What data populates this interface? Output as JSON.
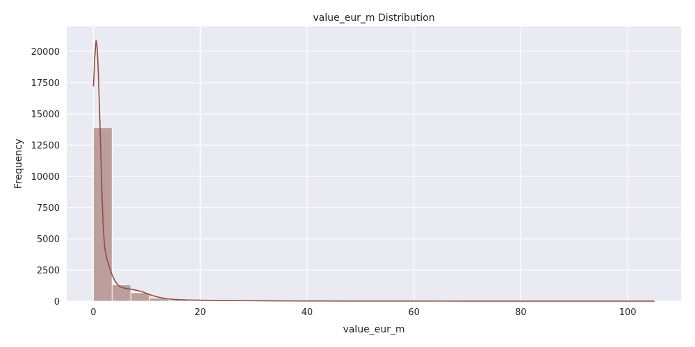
{
  "chart_data": {
    "type": "bar",
    "title": "value_eur_m Distribution",
    "xlabel": "value_eur_m",
    "ylabel": "Frequency",
    "xlim": [
      -5,
      110
    ],
    "ylim": [
      0,
      22000
    ],
    "xticks": [
      0,
      20,
      40,
      60,
      80,
      100
    ],
    "yticks": [
      0,
      2500,
      5000,
      7500,
      10000,
      12500,
      15000,
      17500,
      20000
    ],
    "grid": true,
    "bin_width": 3.5,
    "bins": [
      {
        "x0": 0,
        "x1": 3.5,
        "count": 13900
      },
      {
        "x0": 3.5,
        "x1": 7,
        "count": 1320
      },
      {
        "x0": 7,
        "x1": 10.5,
        "count": 680
      },
      {
        "x0": 10.5,
        "x1": 14,
        "count": 250
      },
      {
        "x0": 14,
        "x1": 17.5,
        "count": 110
      },
      {
        "x0": 17.5,
        "x1": 21,
        "count": 60
      },
      {
        "x0": 21,
        "x1": 24.5,
        "count": 35
      },
      {
        "x0": 24.5,
        "x1": 28,
        "count": 25
      },
      {
        "x0": 28,
        "x1": 31.5,
        "count": 18
      },
      {
        "x0": 31.5,
        "x1": 35,
        "count": 14
      },
      {
        "x0": 35,
        "x1": 38.5,
        "count": 10
      },
      {
        "x0": 38.5,
        "x1": 42,
        "count": 8
      },
      {
        "x0": 42,
        "x1": 45.5,
        "count": 6
      },
      {
        "x0": 45.5,
        "x1": 49,
        "count": 5
      },
      {
        "x0": 49,
        "x1": 52.5,
        "count": 4
      },
      {
        "x0": 52.5,
        "x1": 56,
        "count": 3
      },
      {
        "x0": 56,
        "x1": 59.5,
        "count": 3
      },
      {
        "x0": 59.5,
        "x1": 63,
        "count": 2
      },
      {
        "x0": 63,
        "x1": 66.5,
        "count": 2
      },
      {
        "x0": 66.5,
        "x1": 70,
        "count": 2
      },
      {
        "x0": 70,
        "x1": 73.5,
        "count": 1
      },
      {
        "x0": 73.5,
        "x1": 77,
        "count": 1
      },
      {
        "x0": 77,
        "x1": 80.5,
        "count": 1
      },
      {
        "x0": 80.5,
        "x1": 84,
        "count": 1
      },
      {
        "x0": 84,
        "x1": 87.5,
        "count": 1
      },
      {
        "x0": 87.5,
        "x1": 91,
        "count": 1
      },
      {
        "x0": 91,
        "x1": 94.5,
        "count": 1
      },
      {
        "x0": 94.5,
        "x1": 98,
        "count": 1
      },
      {
        "x0": 98,
        "x1": 101.5,
        "count": 1
      },
      {
        "x0": 101.5,
        "x1": 105,
        "count": 1
      }
    ],
    "kde": {
      "x": [
        0,
        0.25,
        0.5,
        0.7,
        0.9,
        1.2,
        1.5,
        1.8,
        2.1,
        2.5,
        3,
        3.5,
        4,
        4.5,
        5,
        6,
        7,
        8,
        9,
        10,
        11,
        12,
        13,
        14,
        16,
        18,
        20,
        22,
        25,
        30,
        35,
        40,
        50,
        60,
        70,
        80,
        90,
        100,
        105
      ],
      "y": [
        17200,
        19500,
        20900,
        20300,
        18500,
        14500,
        10000,
        6200,
        4300,
        3400,
        2700,
        2100,
        1650,
        1350,
        1150,
        1020,
        960,
        880,
        780,
        620,
        460,
        340,
        250,
        180,
        120,
        95,
        80,
        65,
        50,
        35,
        25,
        18,
        12,
        8,
        5,
        4,
        3,
        2,
        2
      ]
    },
    "colors": {
      "bar_fill": "#bc9e9c",
      "bar_edge": "#ffffff",
      "kde_line": "#8c4e3f",
      "plot_background": "#eaeaf2",
      "grid": "#ffffff",
      "text": "#262626"
    }
  }
}
